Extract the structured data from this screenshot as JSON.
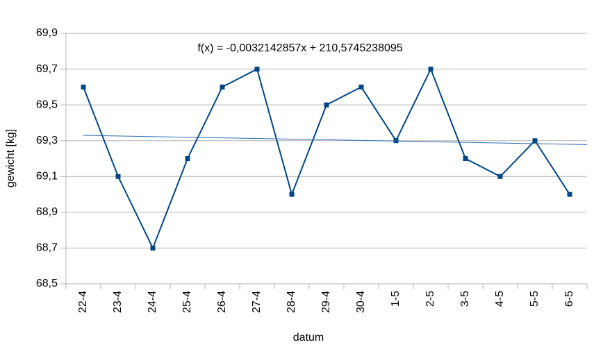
{
  "chart_data": {
    "type": "line",
    "categories": [
      "22-4",
      "23-4",
      "24-4",
      "25-4",
      "26-4",
      "27-4",
      "28-4",
      "29-4",
      "30-4",
      "1-5",
      "2-5",
      "3-5",
      "4-5",
      "5-5",
      "6-5"
    ],
    "series": [
      {
        "name": "gewicht",
        "color": "#004586",
        "values": [
          69.6,
          69.1,
          68.7,
          69.2,
          69.6,
          69.7,
          69.0,
          69.5,
          69.6,
          69.3,
          69.7,
          69.2,
          69.1,
          69.3,
          69.0
        ]
      }
    ],
    "trendline": {
      "values": [
        69.33,
        69.28
      ],
      "color": "#2a6db0",
      "annotation": "f(x) = -0,0032142857x + 210,5745238095"
    },
    "xlabel": "datum",
    "ylabel": "gewicht [kg]",
    "ylim": [
      68.5,
      69.9
    ],
    "yticks": [
      {
        "value": 68.5,
        "label": "68,5"
      },
      {
        "value": 68.7,
        "label": "68,7"
      },
      {
        "value": 68.9,
        "label": "68,9"
      },
      {
        "value": 69.1,
        "label": "69,1"
      },
      {
        "value": 69.3,
        "label": "69,3"
      },
      {
        "value": 69.5,
        "label": "69,5"
      },
      {
        "value": 69.7,
        "label": "69,7"
      },
      {
        "value": 69.9,
        "label": "69,9"
      }
    ],
    "grid": true
  }
}
